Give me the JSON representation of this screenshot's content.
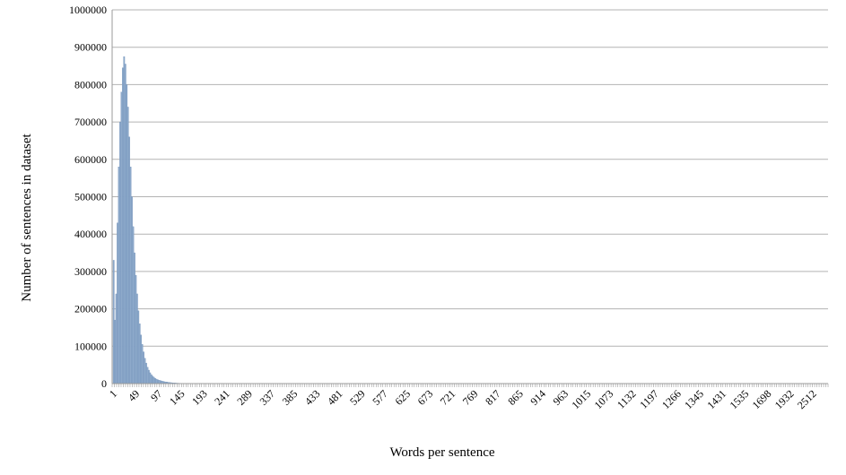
{
  "chart_data": {
    "type": "bar",
    "title": "",
    "xlabel": "Words per sentence",
    "ylabel": "Number of sentences in dataset",
    "ylim": [
      0,
      1000000
    ],
    "y_ticks": [
      "0",
      "100000",
      "200000",
      "300000",
      "400000",
      "500000",
      "600000",
      "700000",
      "800000",
      "900000",
      "1000000"
    ],
    "x_tick_labels": [
      "1",
      "49",
      "97",
      "145",
      "193",
      "241",
      "289",
      "337",
      "385",
      "433",
      "481",
      "529",
      "577",
      "625",
      "673",
      "721",
      "769",
      "817",
      "865",
      "914",
      "963",
      "1015",
      "1073",
      "1132",
      "1197",
      "1266",
      "1345",
      "1431",
      "1535",
      "1698",
      "1932",
      "2512"
    ],
    "grid": true,
    "legend": "none",
    "series": [
      {
        "values": [
          330000,
          170000,
          240000,
          430000,
          580000,
          700000,
          780000,
          845000,
          875000,
          855000,
          800000,
          740000,
          660000,
          580000,
          500000,
          420000,
          350000,
          290000,
          240000,
          195000,
          160000,
          130000,
          105000,
          85000,
          68000,
          55000,
          44000,
          36000,
          29000,
          24000,
          20000,
          17000,
          14000,
          12000,
          10000,
          9000,
          8000,
          7000,
          6000,
          5000,
          4500,
          4000,
          3500,
          3000,
          2600,
          2200,
          1900,
          1600,
          1400,
          1200,
          1000,
          900,
          800,
          700,
          600,
          500,
          400,
          300,
          250,
          200,
          150,
          100
        ]
      }
    ],
    "colors": {
      "bar": "#8eaacb",
      "bar_edge": "#6f8fb8",
      "grid": "#b3b3b3",
      "axis": "#9a9a9a"
    }
  }
}
